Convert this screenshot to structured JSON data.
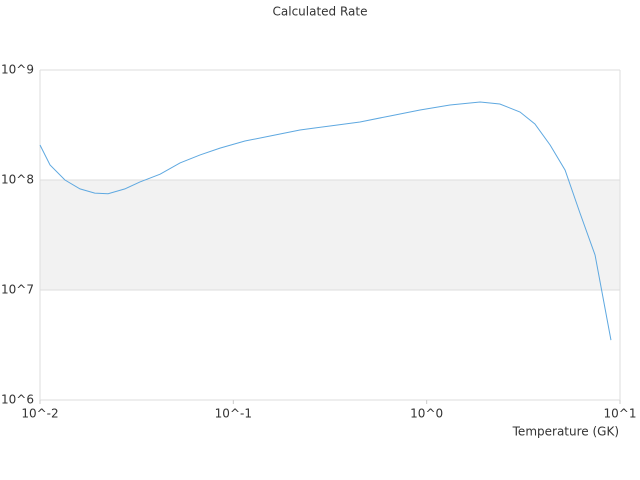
{
  "chart_data": {
    "type": "line",
    "title": "Calculated Rate",
    "x_label": "Temperature (GK)",
    "x_log": true,
    "y_log": true,
    "grid": true,
    "xlim": [
      0.01,
      10
    ],
    "ylim": [
      1000000,
      1000000000
    ],
    "xticks": [
      {
        "value": 0.01,
        "label": "10^-2"
      },
      {
        "value": 0.1,
        "label": "10^-1"
      },
      {
        "value": 1,
        "label": "10^0"
      },
      {
        "value": 10,
        "label": "10^1"
      }
    ],
    "yticks": [
      {
        "value": 1000000,
        "label": "10^6"
      },
      {
        "value": 10000000,
        "label": "10^7"
      },
      {
        "value": 100000000,
        "label": "10^8"
      },
      {
        "value": 1000000000,
        "label": "10^9"
      }
    ],
    "x": [
      0.01,
      0.01127,
      0.01346,
      0.0161,
      0.0192,
      0.0225,
      0.0275,
      0.0329,
      0.0418,
      0.053,
      0.0673,
      0.0853,
      0.1148,
      0.155,
      0.221,
      0.316,
      0.452,
      0.646,
      0.924,
      1.32,
      1.89,
      2.39,
      3.04,
      3.63,
      4.35,
      5.2,
      6.21,
      7.43,
      8.98
    ],
    "series": [
      {
        "color": "#5ea8e0",
        "values": [
          208000000,
          137000000,
          100000000,
          83000000,
          76000000,
          75000000,
          83000000,
          96000000,
          113000000,
          143000000,
          169000000,
          195000000,
          226000000,
          251000000,
          285000000,
          310000000,
          337000000,
          382000000,
          433000000,
          481000000,
          512000000,
          491000000,
          415000000,
          323000000,
          208000000,
          123000000,
          50000000,
          20800000,
          3500000
        ]
      }
    ]
  }
}
